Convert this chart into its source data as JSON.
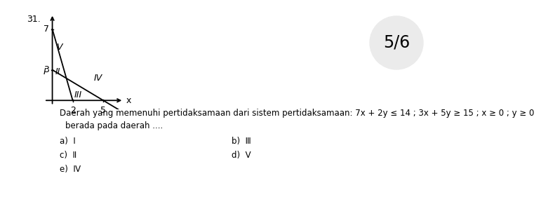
{
  "question_number": "31.",
  "badge_text": "5/6",
  "title_line1": "Daerah yang memenuhi pertidaksamaan dari sistem pertidaksamaan: 7x + 2y ≤ 14 ; 3x + 5y ≥ 15 ; x ≥ 0 ; y ≥ 0",
  "title_line2": "berada pada daerah ....",
  "options": [
    [
      "a)  I",
      "b)  Ⅲ"
    ],
    [
      "c)  Ⅱ",
      "d)  V"
    ],
    [
      "e)  Ⅳ",
      ""
    ]
  ],
  "x_ticks": [
    2,
    5
  ],
  "y_ticks": [
    3,
    7
  ],
  "line1_points": [
    [
      0,
      7
    ],
    [
      2,
      0
    ]
  ],
  "line2_points": [
    [
      0,
      3
    ],
    [
      5,
      0
    ]
  ],
  "bg_color": "#ffffff",
  "text_color": "#000000",
  "line_color": "#000000",
  "axis_color": "#000000",
  "fontsize_main": 8.5,
  "fontsize_tick": 9,
  "fontsize_region": 9,
  "fontsize_badge": 17,
  "fontsize_qnum": 9
}
